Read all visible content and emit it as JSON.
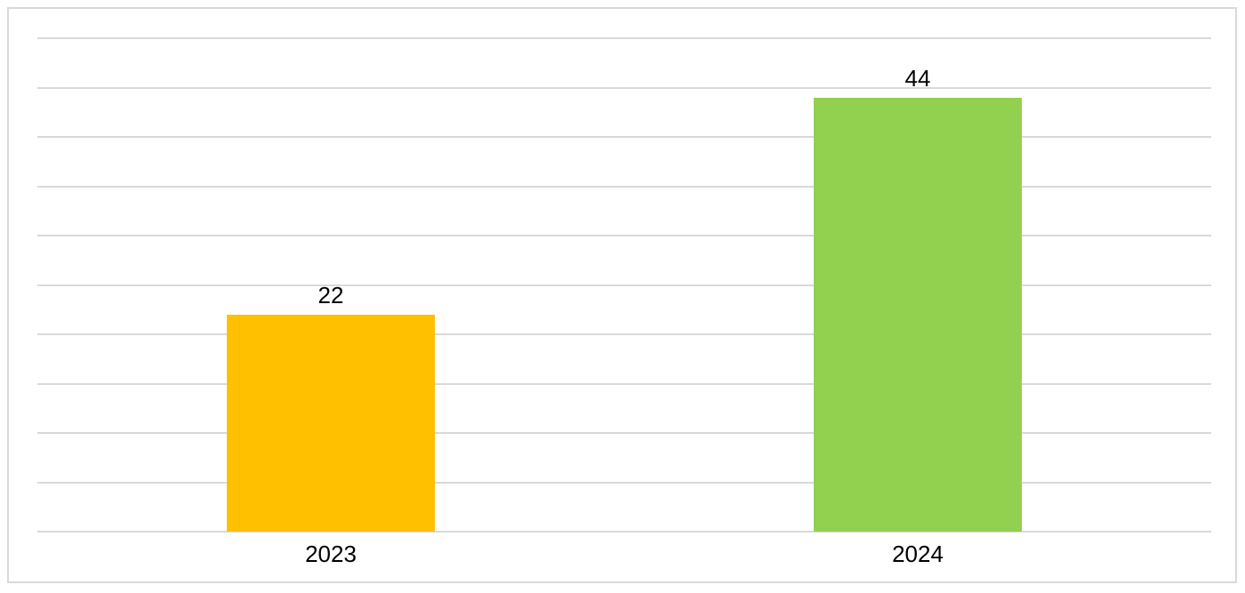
{
  "chart_data": {
    "type": "bar",
    "categories": [
      "2023",
      "2024"
    ],
    "values": [
      22,
      44
    ],
    "data_labels": [
      "22",
      "44"
    ],
    "bar_colors": [
      "#FFC000",
      "#92D050"
    ],
    "title": "",
    "xlabel": "",
    "ylabel": "",
    "ylim": [
      0,
      50
    ],
    "grid_step": 5,
    "grid": true,
    "legend_position": "none",
    "gridline_color": "#D9D9D9",
    "frame_border_color": "#D9D9D9",
    "label_color": "#000000",
    "background_color": "#FFFFFF"
  }
}
